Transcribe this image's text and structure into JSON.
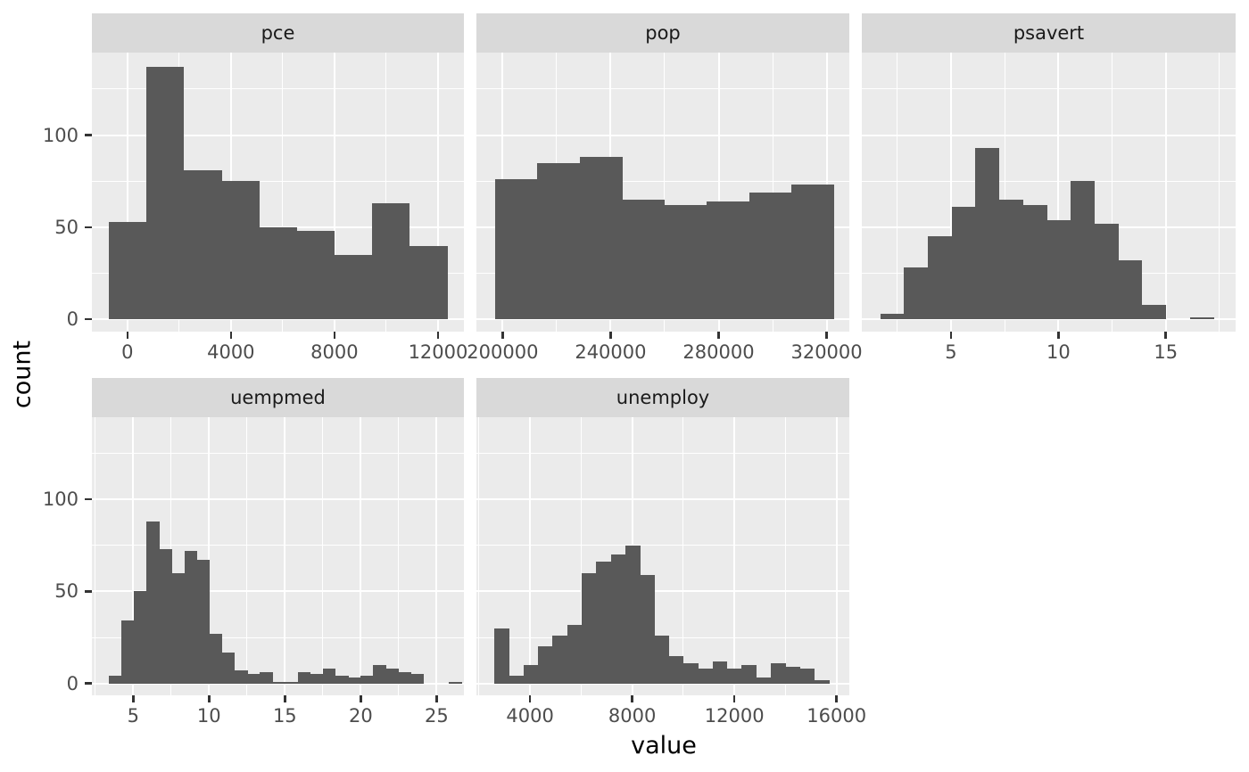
{
  "figure": {
    "x_axis_title": "value",
    "y_axis_title": "count",
    "colors": {
      "background": "#FFFFFF",
      "bar": "#595959",
      "panel_bg": "#EBEBEB",
      "strip_bg": "#D9D9D9",
      "grid": "#FFFFFF",
      "tick_label": "#4D4D4D",
      "tick_mark": "#333333",
      "strip_text": "#1A1A1A",
      "title": "#000000"
    }
  },
  "chart_data": {
    "type": "bar",
    "subtype": "faceted-histogram",
    "title": "",
    "xlabel": "value",
    "ylabel": "count",
    "legend": "none",
    "grid": "on",
    "y_domain": [
      -6.45,
      144.85
    ],
    "y_ticks": [
      0,
      50,
      100
    ],
    "y_tick_labels": [
      "0",
      "50",
      "100"
    ],
    "y_minor": [
      25,
      75,
      125
    ],
    "facets": [
      {
        "title": "pce",
        "x_domain": [
          -1370,
          13000
        ],
        "x_ticks": [
          0,
          4000,
          8000,
          12000
        ],
        "x_tick_labels": [
          "0",
          "4000",
          "8000",
          "12000"
        ],
        "x_minor": [
          2000,
          6000,
          10000
        ],
        "bin_start": -723,
        "bin_width": 1453,
        "counts": [
          53,
          137,
          81,
          75,
          50,
          48,
          35,
          63,
          40
        ]
      },
      {
        "title": "pop",
        "x_domain": [
          190300,
          328400
        ],
        "x_ticks": [
          200000,
          240000,
          280000,
          320000
        ],
        "x_tick_labels": [
          "200000",
          "240000",
          "280000",
          "320000"
        ],
        "x_minor": [
          220000,
          260000,
          300000
        ],
        "bin_start": 197160,
        "bin_width": 15700,
        "counts": [
          76,
          85,
          88,
          65,
          62,
          64,
          69,
          73
        ]
      },
      {
        "title": "psavert",
        "x_domain": [
          0.85,
          18.25
        ],
        "x_ticks": [
          5,
          10,
          15
        ],
        "x_tick_labels": [
          "5",
          "10",
          "15"
        ],
        "x_minor": [
          2.5,
          7.5,
          12.5,
          17.5
        ],
        "bin_start": 1.71,
        "bin_width": 1.108,
        "counts": [
          3,
          28,
          45,
          61,
          93,
          65,
          62,
          54,
          75,
          52,
          32,
          8,
          0,
          1
        ]
      },
      {
        "title": "uempmed",
        "x_domain": [
          2.28,
          26.8
        ],
        "x_ticks": [
          5,
          10,
          15,
          20,
          25
        ],
        "x_tick_labels": [
          "5",
          "10",
          "15",
          "20",
          "25"
        ],
        "x_minor": [
          2.5,
          7.5,
          12.5,
          17.5,
          22.5
        ],
        "bin_start": 3.4,
        "bin_width": 0.83,
        "counts": [
          4,
          34,
          50,
          88,
          73,
          60,
          72,
          67,
          27,
          17,
          7,
          5,
          6,
          1,
          1,
          6,
          5,
          8,
          4,
          3,
          4,
          10,
          8,
          6,
          5,
          0,
          0,
          1
        ]
      },
      {
        "title": "unemploy",
        "x_domain": [
          1900,
          16500
        ],
        "x_ticks": [
          4000,
          8000,
          12000,
          16000
        ],
        "x_tick_labels": [
          "4000",
          "8000",
          "12000",
          "16000"
        ],
        "x_minor": [
          2000,
          6000,
          10000,
          14000
        ],
        "bin_start": 2600,
        "bin_width": 570,
        "counts": [
          30,
          4,
          10,
          20,
          26,
          32,
          60,
          66,
          70,
          75,
          59,
          26,
          15,
          11,
          8,
          12,
          8,
          10,
          3,
          11,
          9,
          8,
          2
        ]
      }
    ]
  }
}
